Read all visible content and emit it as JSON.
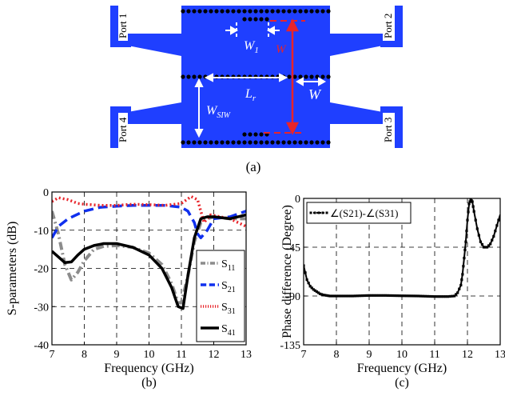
{
  "figure_a": {
    "caption": "(a)",
    "ports": [
      "Port 1",
      "Port 2",
      "Port 4",
      "Port 3"
    ],
    "dims": {
      "w1": "W",
      "w1_sub": "1",
      "w": "W",
      "lr": "L",
      "lr_sub": "r",
      "wsiw": "W",
      "wsiw_sub": "SIW",
      "w_red": "W"
    },
    "colors": {
      "substrate": "#1f3fff",
      "via": "#000000",
      "accent": "#e8242a"
    }
  },
  "chart_data": [
    {
      "type": "line",
      "caption": "(b)",
      "xlabel": "Frequency (GHz)",
      "ylabel": "S-parameters (dB)",
      "xlim": [
        7,
        13
      ],
      "ylim": [
        -40,
        0
      ],
      "xticks": [
        "7",
        "8",
        "9",
        "10",
        "11",
        "12",
        "13"
      ],
      "yticks": [
        "0",
        "-10",
        "-20",
        "-30",
        "-40"
      ],
      "grid": true,
      "legend_placement": "bottom-right",
      "series": [
        {
          "name": "S",
          "sub": "11",
          "color": "#8c8c8c",
          "dash": "10,4,2,4",
          "x": [
            7,
            7.2,
            7.4,
            7.6,
            7.8,
            8,
            8.3,
            8.6,
            9,
            9.5,
            10,
            10.4,
            10.7,
            10.9,
            11,
            11.2,
            11.4,
            11.6,
            11.8,
            12,
            12.5,
            13
          ],
          "y": [
            -5,
            -11,
            -19,
            -23,
            -21,
            -18,
            -15,
            -14.2,
            -14,
            -14.5,
            -16,
            -19,
            -24,
            -29,
            -29,
            -22,
            -13,
            -8,
            -7,
            -6.5,
            -7,
            -7
          ]
        },
        {
          "name": "S",
          "sub": "21",
          "color": "#1030ee",
          "dash": "12,6",
          "x": [
            7,
            7.2,
            7.5,
            8,
            8.5,
            9,
            9.5,
            10,
            10.5,
            11,
            11.2,
            11.4,
            11.5,
            11.6,
            11.8,
            12,
            12.5,
            13
          ],
          "y": [
            -12,
            -9,
            -7,
            -5,
            -4,
            -3.7,
            -3.5,
            -3.5,
            -3.5,
            -4,
            -5,
            -8,
            -11,
            -12,
            -10,
            -7,
            -6.5,
            -5
          ]
        },
        {
          "name": "S",
          "sub": "31",
          "color": "#e8242a",
          "dash": "2,3",
          "x": [
            7,
            7.2,
            7.5,
            7.8,
            8,
            8.5,
            9,
            9.5,
            10,
            10.5,
            11,
            11.3,
            11.5,
            11.7,
            11.9,
            12.2,
            12.5,
            13
          ],
          "y": [
            -2.5,
            -1.5,
            -2,
            -3,
            -3.2,
            -3.5,
            -3.5,
            -3.2,
            -3.3,
            -3.5,
            -3,
            -1.2,
            -2,
            -8,
            -6,
            -6.5,
            -7,
            -9
          ]
        },
        {
          "name": "S",
          "sub": "41",
          "color": "#000000",
          "dash": "",
          "x": [
            7,
            7.2,
            7.4,
            7.6,
            7.8,
            8,
            8.3,
            8.6,
            9,
            9.5,
            10,
            10.4,
            10.7,
            10.9,
            11.05,
            11.2,
            11.4,
            11.6,
            11.8,
            12,
            12.5,
            13
          ],
          "y": [
            -15.5,
            -17,
            -18.5,
            -18.3,
            -16.5,
            -15,
            -14,
            -13.5,
            -13.5,
            -14.5,
            -16.5,
            -20,
            -25,
            -30,
            -30.5,
            -22,
            -12,
            -7,
            -6.5,
            -6.5,
            -7,
            -6
          ]
        }
      ]
    },
    {
      "type": "line",
      "caption": "(c)",
      "xlabel": "Frequency (GHz)",
      "ylabel": "Phase difference (Degree)",
      "xlim": [
        7,
        13
      ],
      "ylim": [
        -135,
        0
      ],
      "xticks": [
        "7",
        "8",
        "9",
        "10",
        "11",
        "12",
        "13"
      ],
      "yticks": [
        "0",
        "-45",
        "-90",
        "-135"
      ],
      "grid": true,
      "legend_placement": "top-left",
      "series": [
        {
          "name": "∠(S21)-∠(S31)",
          "color": "#000000",
          "marker": "square",
          "x": [
            7,
            7.1,
            7.2,
            7.3,
            7.4,
            7.5,
            7.6,
            7.7,
            7.8,
            8,
            8.5,
            9,
            9.5,
            10,
            10.5,
            11,
            11.2,
            11.4,
            11.6,
            11.7,
            11.8,
            11.85,
            11.9,
            11.95,
            12,
            12.05,
            12.1,
            12.15,
            12.2,
            12.3,
            12.4,
            12.5,
            12.6,
            12.7,
            12.8,
            12.9,
            13
          ],
          "y": [
            -62,
            -75,
            -81,
            -84,
            -86,
            -88,
            -89,
            -89.5,
            -90,
            -90,
            -90,
            -89.5,
            -89.5,
            -89.8,
            -90,
            -90.5,
            -90.5,
            -90.5,
            -90,
            -87,
            -80,
            -70,
            -55,
            -40,
            -20,
            -5,
            -1,
            -3,
            -12,
            -28,
            -40,
            -45,
            -45,
            -42,
            -35,
            -25,
            -15
          ]
        }
      ]
    }
  ]
}
